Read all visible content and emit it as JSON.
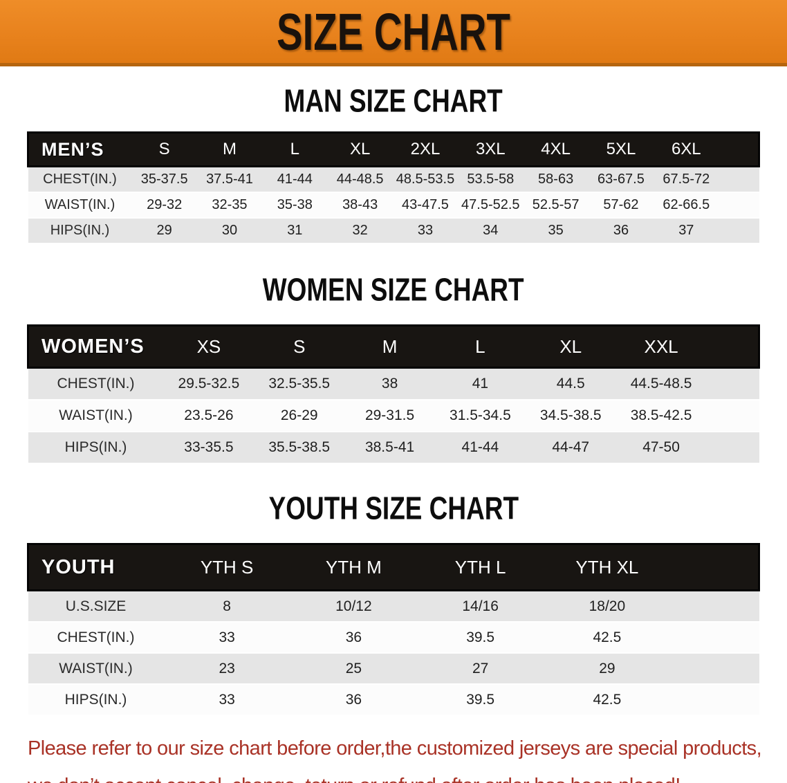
{
  "banner": {
    "title": "SIZE CHART"
  },
  "colors": {
    "banner_orange": "#e8821d",
    "banner_border": "#b5650f",
    "table_header_bg": "#181512",
    "table_header_text": "#ffffff",
    "row_gray": "#e5e5e5",
    "row_white": "#fcfcfc",
    "footer_red": "#a93226"
  },
  "sections": [
    {
      "title": "MAN SIZE CHART",
      "header_label": "MEN’S",
      "columns": [
        "S",
        "M",
        "L",
        "XL",
        "2XL",
        "3XL",
        "4XL",
        "5XL",
        "6XL"
      ],
      "rows": [
        {
          "label": "CHEST(IN.)",
          "values": [
            "35-37.5",
            "37.5-41",
            "41-44",
            "44-48.5",
            "48.5-53.5",
            "53.5-58",
            "58-63",
            "63-67.5",
            "67.5-72"
          ]
        },
        {
          "label": "WAIST(IN.)",
          "values": [
            "29-32",
            "32-35",
            "35-38",
            "38-43",
            "43-47.5",
            "47.5-52.5",
            "52.5-57",
            "57-62",
            "62-66.5"
          ]
        },
        {
          "label": "HIPS(IN.)",
          "values": [
            "29",
            "30",
            "31",
            "32",
            "33",
            "34",
            "35",
            "36",
            "37"
          ]
        }
      ]
    },
    {
      "title": "WOMEN SIZE CHART",
      "header_label": "WOMEN’S",
      "columns": [
        "XS",
        "S",
        "M",
        "L",
        "XL",
        "XXL"
      ],
      "rows": [
        {
          "label": "CHEST(IN.)",
          "values": [
            "29.5-32.5",
            "32.5-35.5",
            "38",
            "41",
            "44.5",
            "44.5-48.5"
          ]
        },
        {
          "label": "WAIST(IN.)",
          "values": [
            "23.5-26",
            "26-29",
            "29-31.5",
            "31.5-34.5",
            "34.5-38.5",
            "38.5-42.5"
          ]
        },
        {
          "label": "HIPS(IN.)",
          "values": [
            "33-35.5",
            "35.5-38.5",
            "38.5-41",
            "41-44",
            "44-47",
            "47-50"
          ]
        }
      ]
    },
    {
      "title": "YOUTH SIZE CHART",
      "header_label": "YOUTH",
      "columns": [
        "YTH S",
        "YTH M",
        "YTH L",
        "YTH XL"
      ],
      "rows": [
        {
          "label": "U.S.SIZE",
          "values": [
            "8",
            "10/12",
            "14/16",
            "18/20"
          ]
        },
        {
          "label": "CHEST(IN.)",
          "values": [
            "33",
            "36",
            "39.5",
            "42.5"
          ]
        },
        {
          "label": "WAIST(IN.)",
          "values": [
            "23",
            "25",
            "27",
            "29"
          ]
        },
        {
          "label": "HIPS(IN.)",
          "values": [
            "33",
            "36",
            "39.5",
            "42.5"
          ]
        }
      ]
    }
  ],
  "footer": {
    "line1": "Please refer to our size chart before order,the customized jerseys are special products,",
    "line2": "we don’t accept cancel, change, teturn or refund after order has been placed!"
  }
}
